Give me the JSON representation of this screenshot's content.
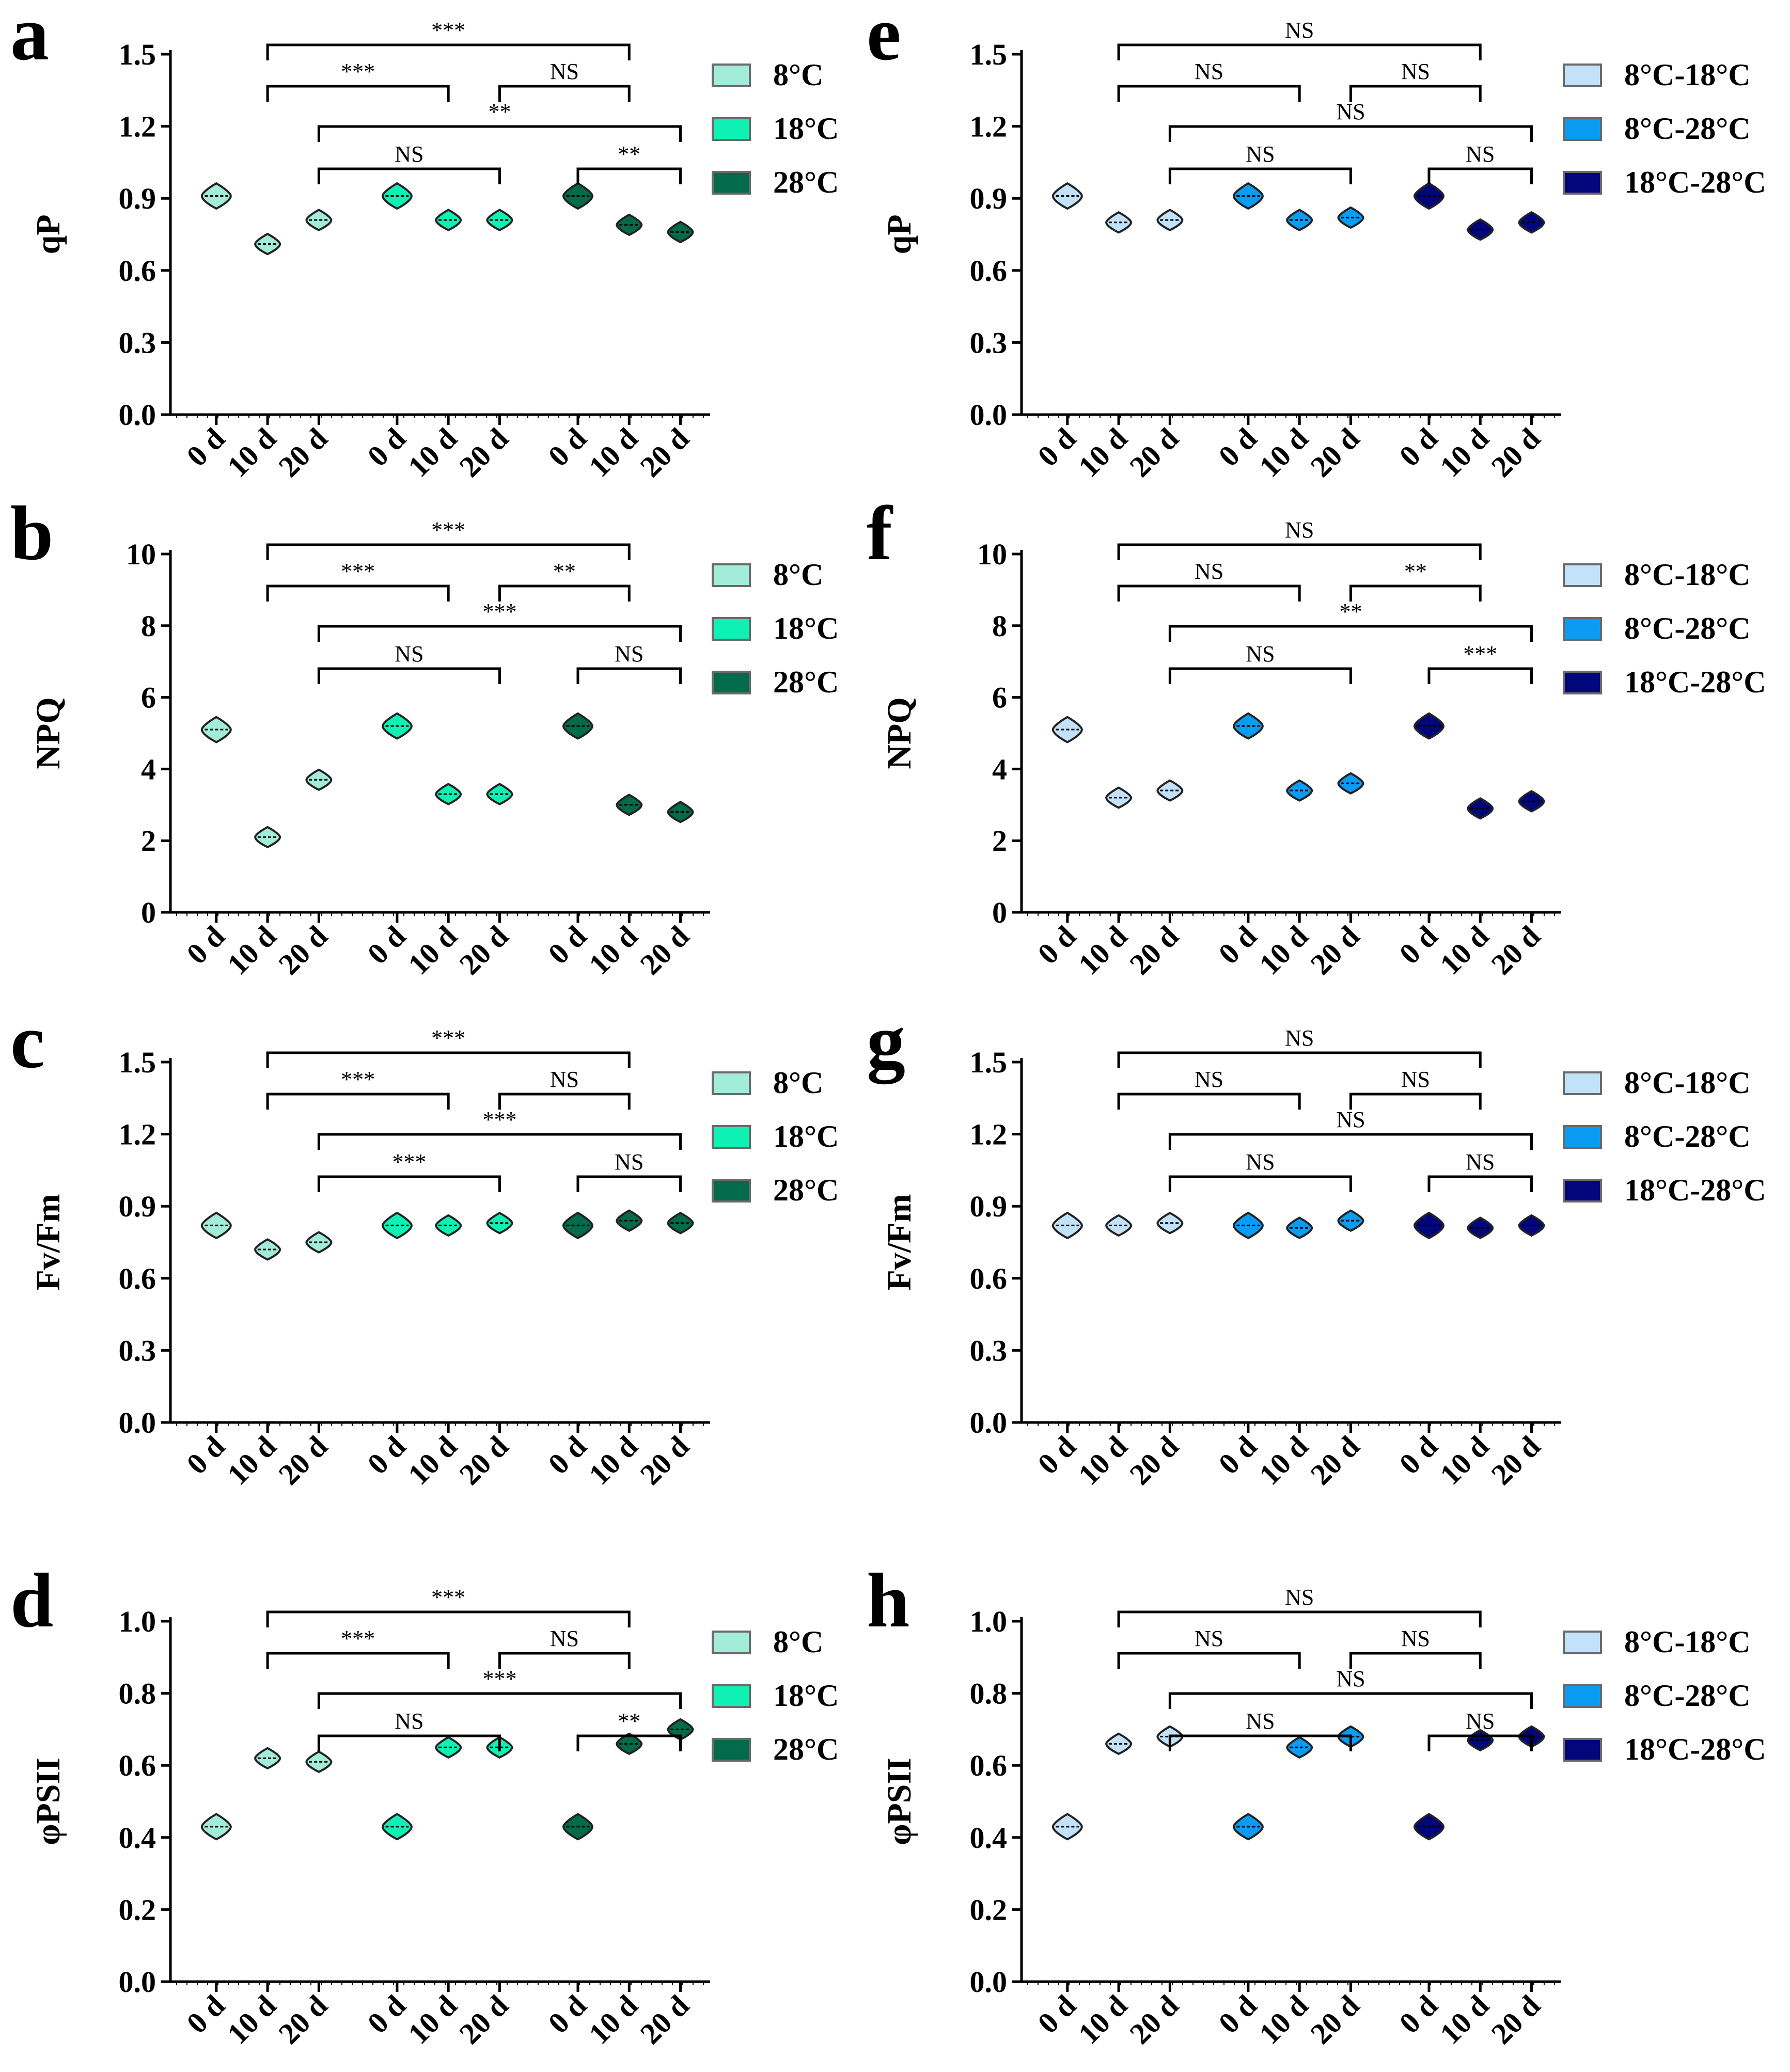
{
  "chart_data": [
    {
      "panel": "a",
      "type": "violin",
      "ylabel": "qP",
      "ylim": [
        0.0,
        1.5
      ],
      "yticks": [
        "0.0",
        "0.3",
        "0.6",
        "0.9",
        "1.2",
        "1.5"
      ],
      "categories": [
        "0 d",
        "10 d",
        "20 d",
        "0 d",
        "10 d",
        "20 d",
        "0 d",
        "10 d",
        "20 d"
      ],
      "colors": [
        "#a3ecd9",
        "#0ff0b4",
        "#036b4a"
      ],
      "series": [
        {
          "name": "8°C",
          "values": [
            0.91,
            0.71,
            0.81
          ]
        },
        {
          "name": "18°C",
          "values": [
            0.91,
            0.81,
            0.81
          ]
        },
        {
          "name": "28°C",
          "values": [
            0.91,
            0.79,
            0.76
          ]
        }
      ],
      "comparisons": [
        {
          "from": 1,
          "to": 7,
          "label": "***"
        },
        {
          "from": 1,
          "to": 4,
          "label": "***"
        },
        {
          "from": 5,
          "to": 7,
          "label": "NS"
        },
        {
          "from": 2,
          "to": 8,
          "label": "**"
        },
        {
          "from": 2,
          "to": 5,
          "label": "NS"
        },
        {
          "from": 6,
          "to": 8,
          "label": "**"
        }
      ]
    },
    {
      "panel": "b",
      "type": "violin",
      "ylabel": "NPQ",
      "ylim": [
        0,
        10
      ],
      "yticks": [
        "0",
        "2",
        "4",
        "6",
        "8",
        "10"
      ],
      "categories": [
        "0 d",
        "10 d",
        "20 d",
        "0 d",
        "10 d",
        "20 d",
        "0 d",
        "10 d",
        "20 d"
      ],
      "colors": [
        "#a3ecd9",
        "#0ff0b4",
        "#036b4a"
      ],
      "series": [
        {
          "name": "8°C",
          "values": [
            5.1,
            2.1,
            3.7
          ]
        },
        {
          "name": "18°C",
          "values": [
            5.2,
            3.3,
            3.3
          ]
        },
        {
          "name": "28°C",
          "values": [
            5.2,
            3.0,
            2.8
          ]
        }
      ],
      "comparisons": [
        {
          "from": 1,
          "to": 7,
          "label": "***"
        },
        {
          "from": 1,
          "to": 4,
          "label": "***"
        },
        {
          "from": 5,
          "to": 7,
          "label": "**"
        },
        {
          "from": 2,
          "to": 8,
          "label": "***"
        },
        {
          "from": 2,
          "to": 5,
          "label": "NS"
        },
        {
          "from": 6,
          "to": 8,
          "label": "NS"
        }
      ]
    },
    {
      "panel": "c",
      "type": "violin",
      "ylabel": "Fv/Fm",
      "ylim": [
        0.0,
        1.5
      ],
      "yticks": [
        "0.0",
        "0.3",
        "0.6",
        "0.9",
        "1.2",
        "1.5"
      ],
      "categories": [
        "0 d",
        "10 d",
        "20 d",
        "0 d",
        "10 d",
        "20 d",
        "0 d",
        "10 d",
        "20 d"
      ],
      "colors": [
        "#a3ecd9",
        "#0ff0b4",
        "#036b4a"
      ],
      "series": [
        {
          "name": "8°C",
          "values": [
            0.82,
            0.72,
            0.75
          ]
        },
        {
          "name": "18°C",
          "values": [
            0.82,
            0.82,
            0.83
          ]
        },
        {
          "name": "28°C",
          "values": [
            0.82,
            0.84,
            0.83
          ]
        }
      ],
      "comparisons": [
        {
          "from": 1,
          "to": 7,
          "label": "***"
        },
        {
          "from": 1,
          "to": 4,
          "label": "***"
        },
        {
          "from": 5,
          "to": 7,
          "label": "NS"
        },
        {
          "from": 2,
          "to": 8,
          "label": "***"
        },
        {
          "from": 2,
          "to": 5,
          "label": "***"
        },
        {
          "from": 6,
          "to": 8,
          "label": "NS"
        }
      ]
    },
    {
      "panel": "d",
      "type": "violin",
      "ylabel": "φPSII",
      "ylim": [
        0.0,
        1.0
      ],
      "yticks": [
        "0.0",
        "0.2",
        "0.4",
        "0.6",
        "0.8",
        "1.0"
      ],
      "categories": [
        "0 d",
        "10 d",
        "20 d",
        "0 d",
        "10 d",
        "20 d",
        "0 d",
        "10 d",
        "20 d"
      ],
      "colors": [
        "#a3ecd9",
        "#0ff0b4",
        "#036b4a"
      ],
      "series": [
        {
          "name": "8°C",
          "values": [
            0.43,
            0.62,
            0.61
          ]
        },
        {
          "name": "18°C",
          "values": [
            0.43,
            0.65,
            0.65
          ]
        },
        {
          "name": "28°C",
          "values": [
            0.43,
            0.66,
            0.7
          ]
        }
      ],
      "comparisons": [
        {
          "from": 1,
          "to": 7,
          "label": "***"
        },
        {
          "from": 1,
          "to": 4,
          "label": "***"
        },
        {
          "from": 5,
          "to": 7,
          "label": "NS"
        },
        {
          "from": 2,
          "to": 8,
          "label": "***"
        },
        {
          "from": 2,
          "to": 5,
          "label": "NS"
        },
        {
          "from": 6,
          "to": 8,
          "label": "**"
        }
      ]
    },
    {
      "panel": "e",
      "type": "violin",
      "ylabel": "qP",
      "ylim": [
        0.0,
        1.5
      ],
      "yticks": [
        "0.0",
        "0.3",
        "0.6",
        "0.9",
        "1.2",
        "1.5"
      ],
      "categories": [
        "0 d",
        "10 d",
        "20 d",
        "0 d",
        "10 d",
        "20 d",
        "0 d",
        "10 d",
        "20 d"
      ],
      "colors": [
        "#c2e2fa",
        "#0a9cf2",
        "#01067a"
      ],
      "series": [
        {
          "name": "8°C-18°C",
          "values": [
            0.91,
            0.8,
            0.81
          ]
        },
        {
          "name": "8°C-28°C",
          "values": [
            0.91,
            0.81,
            0.82
          ]
        },
        {
          "name": "18°C-28°C",
          "values": [
            0.91,
            0.77,
            0.8
          ]
        }
      ],
      "comparisons": [
        {
          "from": 1,
          "to": 7,
          "label": "NS"
        },
        {
          "from": 1,
          "to": 4,
          "label": "NS"
        },
        {
          "from": 5,
          "to": 7,
          "label": "NS"
        },
        {
          "from": 2,
          "to": 8,
          "label": "NS"
        },
        {
          "from": 2,
          "to": 5,
          "label": "NS"
        },
        {
          "from": 6,
          "to": 8,
          "label": "NS"
        }
      ]
    },
    {
      "panel": "f",
      "type": "violin",
      "ylabel": "NPQ",
      "ylim": [
        0,
        10
      ],
      "yticks": [
        "0",
        "2",
        "4",
        "6",
        "8",
        "10"
      ],
      "categories": [
        "0 d",
        "10 d",
        "20 d",
        "0 d",
        "10 d",
        "20 d",
        "0 d",
        "10 d",
        "20 d"
      ],
      "colors": [
        "#c2e2fa",
        "#0a9cf2",
        "#01067a"
      ],
      "series": [
        {
          "name": "8°C-18°C",
          "values": [
            5.1,
            3.2,
            3.4
          ]
        },
        {
          "name": "8°C-28°C",
          "values": [
            5.2,
            3.4,
            3.6
          ]
        },
        {
          "name": "18°C-28°C",
          "values": [
            5.2,
            2.9,
            3.1
          ]
        }
      ],
      "comparisons": [
        {
          "from": 1,
          "to": 7,
          "label": "NS"
        },
        {
          "from": 1,
          "to": 4,
          "label": "NS"
        },
        {
          "from": 5,
          "to": 7,
          "label": "**"
        },
        {
          "from": 2,
          "to": 8,
          "label": "**"
        },
        {
          "from": 2,
          "to": 5,
          "label": "NS"
        },
        {
          "from": 6,
          "to": 8,
          "label": "***"
        }
      ]
    },
    {
      "panel": "g",
      "type": "violin",
      "ylabel": "Fv/Fm",
      "ylim": [
        0.0,
        1.5
      ],
      "yticks": [
        "0.0",
        "0.3",
        "0.6",
        "0.9",
        "1.2",
        "1.5"
      ],
      "categories": [
        "0 d",
        "10 d",
        "20 d",
        "0 d",
        "10 d",
        "20 d",
        "0 d",
        "10 d",
        "20 d"
      ],
      "colors": [
        "#c2e2fa",
        "#0a9cf2",
        "#01067a"
      ],
      "series": [
        {
          "name": "8°C-18°C",
          "values": [
            0.82,
            0.82,
            0.83
          ]
        },
        {
          "name": "8°C-28°C",
          "values": [
            0.82,
            0.81,
            0.84
          ]
        },
        {
          "name": "18°C-28°C",
          "values": [
            0.82,
            0.81,
            0.82
          ]
        }
      ],
      "comparisons": [
        {
          "from": 1,
          "to": 7,
          "label": "NS"
        },
        {
          "from": 1,
          "to": 4,
          "label": "NS"
        },
        {
          "from": 5,
          "to": 7,
          "label": "NS"
        },
        {
          "from": 2,
          "to": 8,
          "label": "NS"
        },
        {
          "from": 2,
          "to": 5,
          "label": "NS"
        },
        {
          "from": 6,
          "to": 8,
          "label": "NS"
        }
      ]
    },
    {
      "panel": "h",
      "type": "violin",
      "ylabel": "φPSII",
      "ylim": [
        0.0,
        1.0
      ],
      "yticks": [
        "0.0",
        "0.2",
        "0.4",
        "0.6",
        "0.8",
        "1.0"
      ],
      "categories": [
        "0 d",
        "10 d",
        "20 d",
        "0 d",
        "10 d",
        "20 d",
        "0 d",
        "10 d",
        "20 d"
      ],
      "colors": [
        "#c2e2fa",
        "#0a9cf2",
        "#01067a"
      ],
      "series": [
        {
          "name": "8°C-18°C",
          "values": [
            0.43,
            0.66,
            0.68
          ]
        },
        {
          "name": "8°C-28°C",
          "values": [
            0.43,
            0.65,
            0.68
          ]
        },
        {
          "name": "18°C-28°C",
          "values": [
            0.43,
            0.67,
            0.68
          ]
        }
      ],
      "comparisons": [
        {
          "from": 1,
          "to": 7,
          "label": "NS"
        },
        {
          "from": 1,
          "to": 4,
          "label": "NS"
        },
        {
          "from": 5,
          "to": 7,
          "label": "NS"
        },
        {
          "from": 2,
          "to": 8,
          "label": "NS"
        },
        {
          "from": 2,
          "to": 5,
          "label": "NS"
        },
        {
          "from": 6,
          "to": 8,
          "label": "NS"
        }
      ]
    }
  ]
}
